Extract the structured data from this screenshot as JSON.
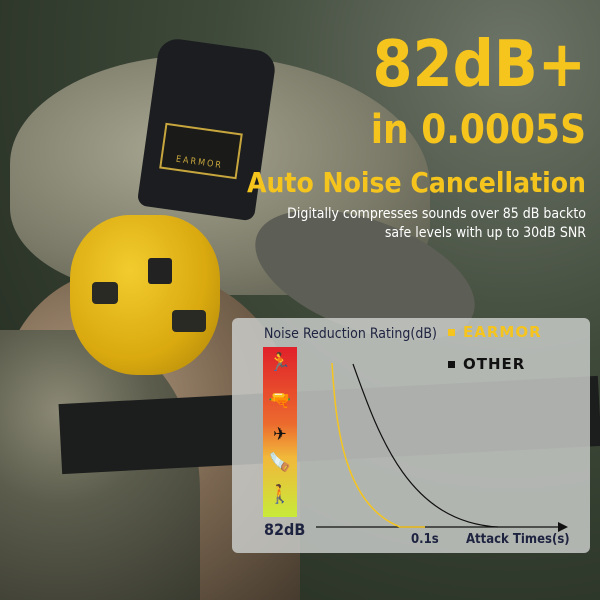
{
  "headline": {
    "line1": "82dB+",
    "line2": "in 0.0005S",
    "line3": "Auto Noise Cancellation"
  },
  "description": {
    "line1": "Digitally compresses sounds over 85 dB backto",
    "line2": "safe levels with up to 30dB SNR"
  },
  "brand_logo": "EARMOR",
  "chart": {
    "title": "Noise Reduction Rating(dB)",
    "legend": [
      {
        "label": "EARMOR",
        "color": "#f5c51e"
      },
      {
        "label": "OTHER",
        "color": "#111111"
      }
    ],
    "y_label": "82dB",
    "x_tick": "0.1s",
    "x_label": "Attack Times(s)",
    "icons": [
      "rifle-shooter-icon",
      "pistol-icon",
      "airplane-icon",
      "chainsaw-icon",
      "lawnmower-icon"
    ]
  },
  "colors": {
    "accent": "#f5c51e",
    "scale_top": "#e0212a",
    "scale_bottom": "#c8ea3a"
  }
}
